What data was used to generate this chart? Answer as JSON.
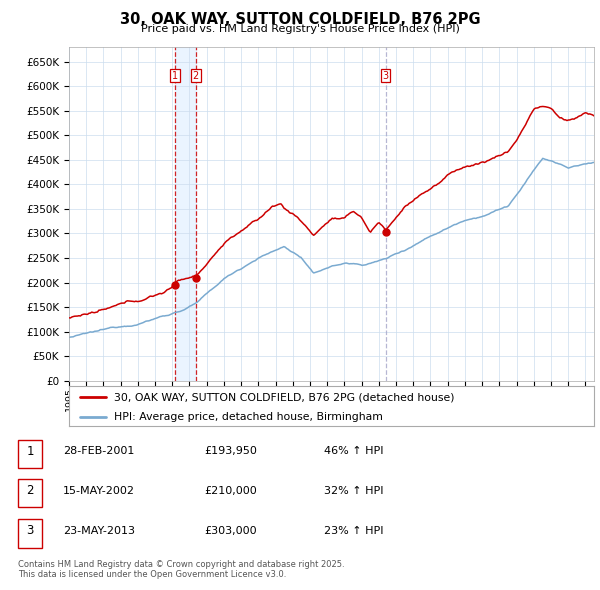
{
  "title": "30, OAK WAY, SUTTON COLDFIELD, B76 2PG",
  "subtitle": "Price paid vs. HM Land Registry's House Price Index (HPI)",
  "ylabel_ticks": [
    "£0",
    "£50K",
    "£100K",
    "£150K",
    "£200K",
    "£250K",
    "£300K",
    "£350K",
    "£400K",
    "£450K",
    "£500K",
    "£550K",
    "£600K",
    "£650K"
  ],
  "ytick_values": [
    0,
    50000,
    100000,
    150000,
    200000,
    250000,
    300000,
    350000,
    400000,
    450000,
    500000,
    550000,
    600000,
    650000
  ],
  "ylim": [
    0,
    680000
  ],
  "xlim_start": 1995.0,
  "xlim_end": 2025.5,
  "xtick_years": [
    1995,
    1996,
    1997,
    1998,
    1999,
    2000,
    2001,
    2002,
    2003,
    2004,
    2005,
    2006,
    2007,
    2008,
    2009,
    2010,
    2011,
    2012,
    2013,
    2014,
    2015,
    2016,
    2017,
    2018,
    2019,
    2020,
    2021,
    2022,
    2023,
    2024,
    2025
  ],
  "sale_color": "#cc0000",
  "hpi_color": "#7aaad0",
  "vline_color": "#cc0000",
  "vline_color3": "#aaaacc",
  "vline_fill1": "#e8eeff",
  "transaction_dates": [
    2001.16,
    2002.37,
    2013.39
  ],
  "transaction_labels": [
    "1",
    "2",
    "3"
  ],
  "legend_sale_label": "30, OAK WAY, SUTTON COLDFIELD, B76 2PG (detached house)",
  "legend_hpi_label": "HPI: Average price, detached house, Birmingham",
  "table_rows": [
    {
      "num": "1",
      "date": "28-FEB-2001",
      "price": "£193,950",
      "change": "46% ↑ HPI"
    },
    {
      "num": "2",
      "date": "15-MAY-2002",
      "price": "£210,000",
      "change": "32% ↑ HPI"
    },
    {
      "num": "3",
      "date": "23-MAY-2013",
      "price": "£303,000",
      "change": "23% ↑ HPI"
    }
  ],
  "footer": "Contains HM Land Registry data © Crown copyright and database right 2025.\nThis data is licensed under the Open Government Licence v3.0.",
  "background_color": "#ffffff",
  "grid_color": "#ccddee"
}
